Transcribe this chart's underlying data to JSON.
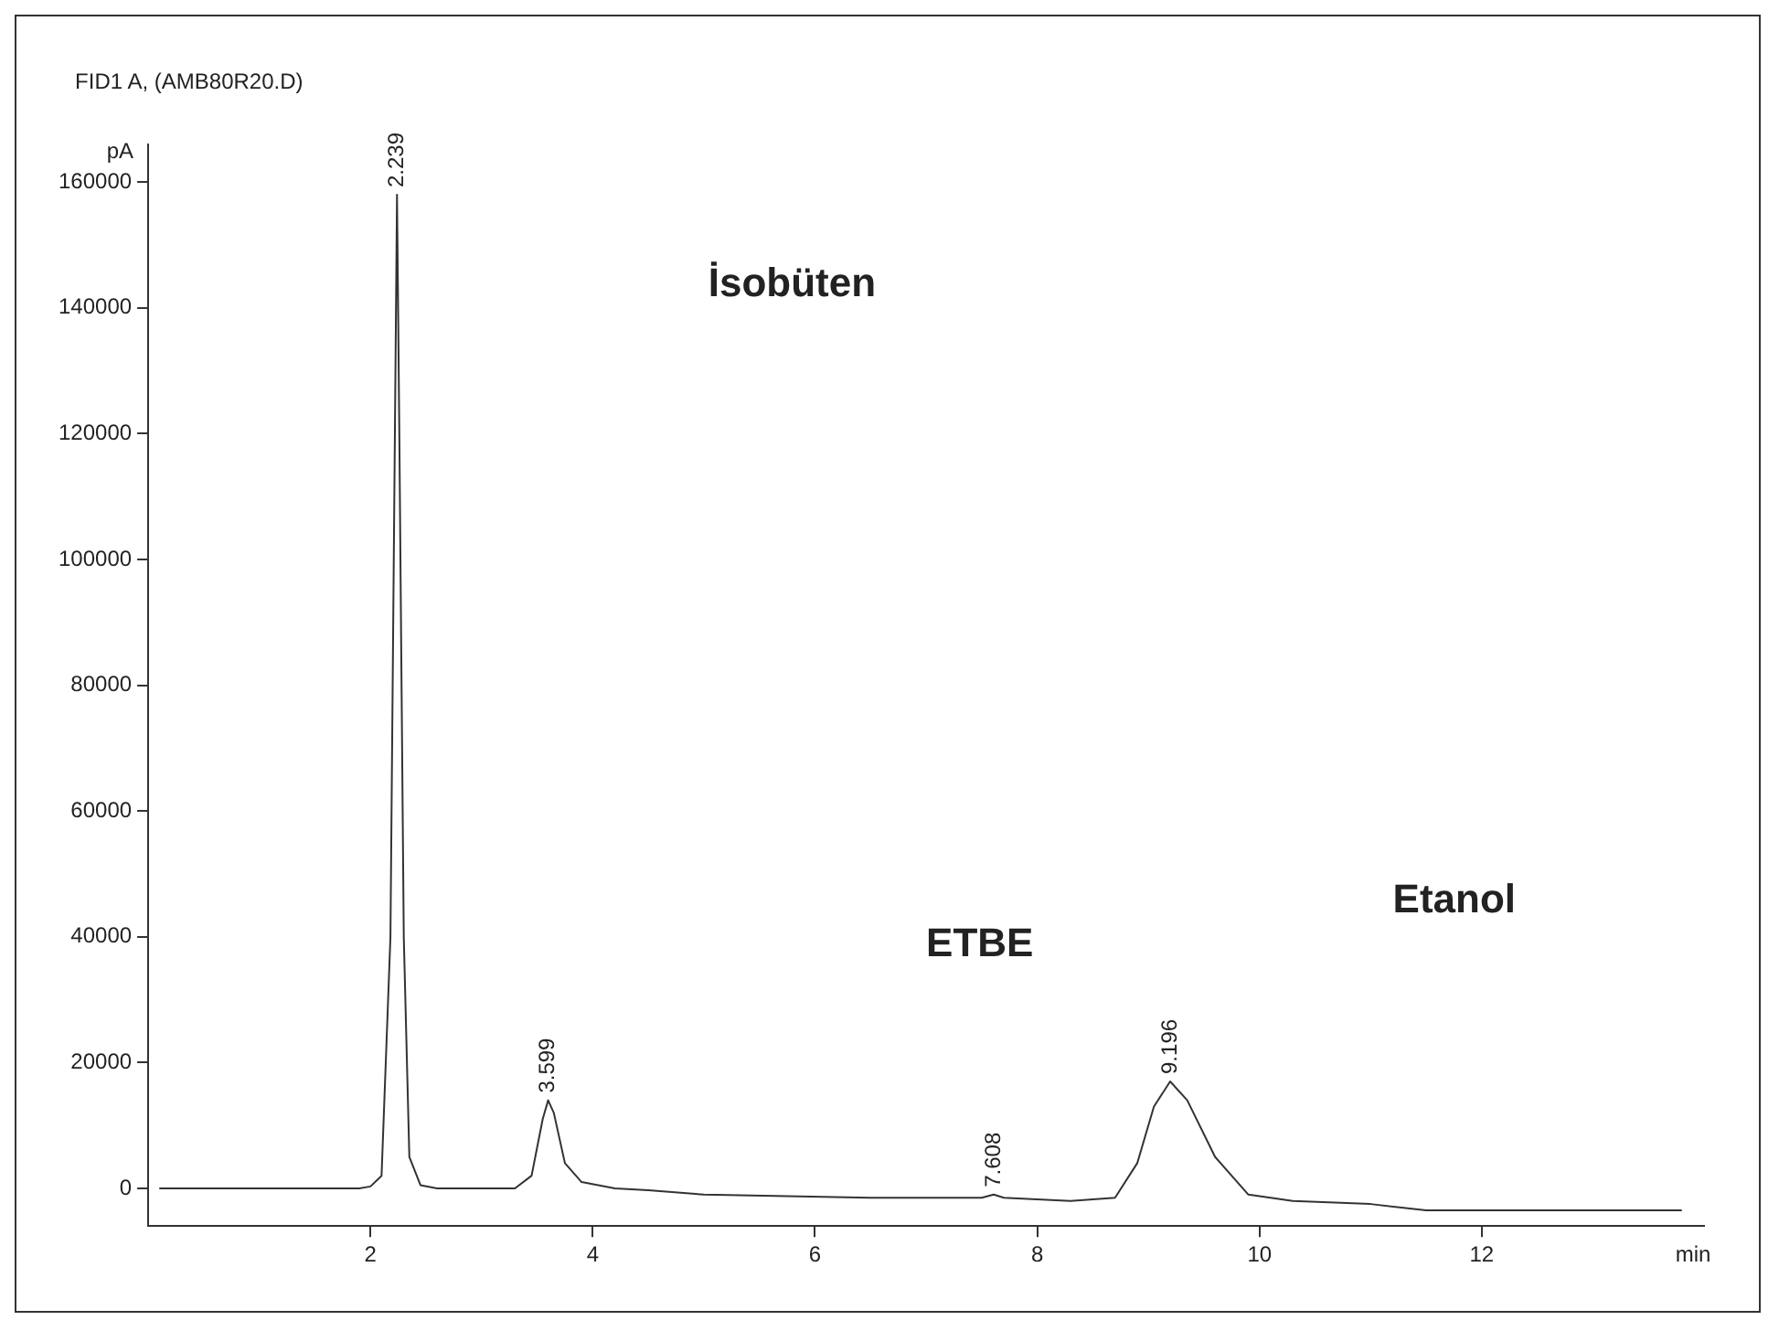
{
  "chart_data": {
    "type": "line",
    "title": "FID1 A, (AMB80R20.D)",
    "xlabel": "min",
    "ylabel": "pA",
    "series": [
      {
        "color": "#333333",
        "x": [
          0.1,
          1.9,
          2.0,
          2.1,
          2.18,
          2.22,
          2.239,
          2.26,
          2.3,
          2.35,
          2.45,
          2.6,
          3.3,
          3.45,
          3.55,
          3.599,
          3.65,
          3.75,
          3.9,
          4.2,
          4.5,
          5.0,
          6.5,
          7.5,
          7.608,
          7.7,
          8.3,
          8.7,
          8.9,
          9.05,
          9.196,
          9.35,
          9.6,
          9.9,
          10.3,
          11.0,
          11.5,
          13.8
        ],
        "values": [
          0,
          0,
          300,
          2000,
          40000,
          120000,
          158000,
          120000,
          40000,
          5000,
          500,
          0,
          0,
          2000,
          11000,
          14000,
          12000,
          4000,
          1000,
          0,
          -300,
          -1000,
          -1500,
          -1500,
          -1000,
          -1500,
          -2000,
          -1500,
          4000,
          13000,
          17000,
          14000,
          5000,
          -1000,
          -2000,
          -2500,
          -3500,
          -3500
        ]
      }
    ],
    "xlim": [
      0,
      14
    ],
    "xticks": [
      2,
      4,
      6,
      8,
      10,
      12
    ],
    "ylim": [
      -6000,
      166000
    ],
    "yticks": [
      0,
      20000,
      40000,
      60000,
      80000,
      100000,
      120000,
      140000,
      160000
    ],
    "grid": false,
    "legend": false,
    "marker": "none",
    "line_style": "solid",
    "annotations": [
      {
        "text": "2.239",
        "x": 2.239,
        "y": 158000
      },
      {
        "text": "3.599",
        "x": 3.599,
        "y": 14000
      },
      {
        "text": "7.608",
        "x": 7.608,
        "y": -1000
      },
      {
        "text": "9.196",
        "x": 9.196,
        "y": 17000
      },
      "İsobüten",
      "ETBE",
      "Etanol"
    ]
  }
}
